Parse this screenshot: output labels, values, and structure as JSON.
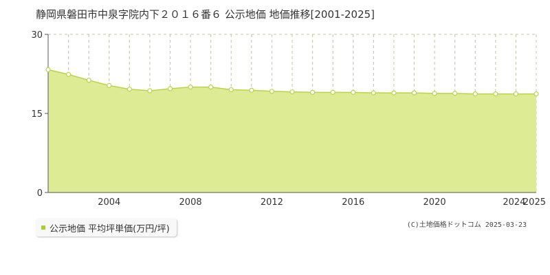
{
  "title": "静岡県磐田市中泉字院内下２０１６番６ 公示地価 地価推移[2001-2025]",
  "legend": {
    "label": "公示地価 平均坪単価(万円/坪)"
  },
  "credit": {
    "source": "(C)土地価格ドットコム",
    "date": "2025-03-23"
  },
  "colors": {
    "fill": "#dceb94",
    "line": "#b8d44a",
    "grid": "#c8c8c8",
    "swatch": "#a8d030"
  },
  "chart_data": {
    "type": "area",
    "x": [
      2001,
      2002,
      2003,
      2004,
      2005,
      2006,
      2007,
      2008,
      2009,
      2010,
      2011,
      2012,
      2013,
      2014,
      2015,
      2016,
      2017,
      2018,
      2019,
      2020,
      2021,
      2022,
      2023,
      2024,
      2025
    ],
    "series": [
      {
        "name": "公示地価 平均坪単価(万円/坪)",
        "values": [
          23.3,
          22.4,
          21.3,
          20.3,
          19.6,
          19.3,
          19.7,
          20.0,
          20.0,
          19.5,
          19.4,
          19.2,
          19.1,
          19.0,
          19.0,
          19.0,
          18.9,
          18.9,
          18.9,
          18.8,
          18.8,
          18.7,
          18.7,
          18.7,
          18.7
        ]
      }
    ],
    "ylim": [
      0,
      30
    ],
    "yticks": [
      0,
      15,
      30
    ],
    "xlim": [
      2001,
      2025
    ],
    "xtick_labels": [
      "2004",
      "2008",
      "2012",
      "2016",
      "2020",
      "2024",
      "2025"
    ],
    "grid": true
  }
}
